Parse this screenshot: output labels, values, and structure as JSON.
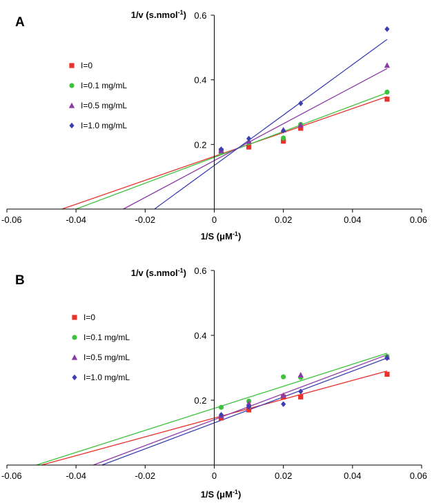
{
  "chart_data": [
    {
      "type": "scatter",
      "panel_label": "A",
      "ylabel": "1/v (s.nmol",
      "ylabel_sup": "-1",
      "ylabel_close": ")",
      "xlabel": "1/S (μM",
      "xlabel_sup": "-1",
      "xlabel_close": ")",
      "xlim": [
        -0.06,
        0.06
      ],
      "ylim": [
        0,
        0.6
      ],
      "x_ticks": [
        "-0.06",
        "-0.04",
        "-0.02",
        "0",
        "0.02",
        "0.04",
        "0.06"
      ],
      "x_tick_values": [
        -0.06,
        -0.04,
        -0.02,
        0,
        0.02,
        0.04,
        0.06
      ],
      "y_ticks": [
        "0.2",
        "0.4",
        "0.6"
      ],
      "y_tick_values": [
        0.2,
        0.4,
        0.6
      ],
      "grid": false,
      "legend_position": "top-left",
      "series": [
        {
          "name": "I=0",
          "marker": "square",
          "color": "#e8322b",
          "x": [
            0.002,
            0.01,
            0.02,
            0.025,
            0.05
          ],
          "y": [
            0.18,
            0.192,
            0.21,
            0.25,
            0.34
          ],
          "fit": {
            "slope": 3.7,
            "intercept": 0.163
          }
        },
        {
          "name": "I=0.1 mg/mL",
          "marker": "circle",
          "color": "#3cc33c",
          "x": [
            0.002,
            0.01,
            0.02,
            0.025,
            0.05
          ],
          "y": [
            0.175,
            0.205,
            0.22,
            0.262,
            0.362
          ],
          "fit": {
            "slope": 4.0,
            "intercept": 0.16
          }
        },
        {
          "name": "I=0.5 mg/mL",
          "marker": "triangle",
          "color": "#8e3aa6",
          "x": [
            0.002,
            0.01,
            0.02,
            0.025,
            0.05
          ],
          "y": [
            0.18,
            0.21,
            0.245,
            0.26,
            0.445
          ],
          "fit": {
            "slope": 5.7,
            "intercept": 0.15
          }
        },
        {
          "name": "I=1.0 mg/mL",
          "marker": "diamond",
          "color": "#3b3fb3",
          "x": [
            0.002,
            0.01,
            0.02,
            0.025,
            0.05
          ],
          "y": [
            0.185,
            0.218,
            0.243,
            0.327,
            0.557
          ],
          "fit": {
            "slope": 7.8,
            "intercept": 0.135
          }
        }
      ]
    },
    {
      "type": "scatter",
      "panel_label": "B",
      "ylabel": "1/v (s.nmol",
      "ylabel_sup": "-1",
      "ylabel_close": ")",
      "xlabel": "1/S (μM",
      "xlabel_sup": "-1",
      "xlabel_close": ")",
      "xlim": [
        -0.06,
        0.06
      ],
      "ylim": [
        0,
        0.6
      ],
      "x_ticks": [
        "-0.06",
        "-0.04",
        "-0.02",
        "0",
        "0.02",
        "0.04",
        "0.06"
      ],
      "x_tick_values": [
        -0.06,
        -0.04,
        -0.02,
        0,
        0.02,
        0.04,
        0.06
      ],
      "y_ticks": [
        "0.2",
        "0.4",
        "0.6"
      ],
      "y_tick_values": [
        0.2,
        0.4,
        0.6
      ],
      "grid": false,
      "legend_position": "top-left",
      "series": [
        {
          "name": "I=0",
          "marker": "square",
          "color": "#e8322b",
          "x": [
            0.002,
            0.01,
            0.02,
            0.025,
            0.05
          ],
          "y": [
            0.145,
            0.17,
            0.21,
            0.21,
            0.28
          ],
          "fit": {
            "slope": 2.9,
            "intercept": 0.145
          }
        },
        {
          "name": "I=0.1 mg/mL",
          "marker": "circle",
          "color": "#3cc33c",
          "x": [
            0.002,
            0.01,
            0.02,
            0.025,
            0.05
          ],
          "y": [
            0.178,
            0.197,
            0.272,
            0.27,
            0.335
          ],
          "fit": {
            "slope": 3.4,
            "intercept": 0.175
          }
        },
        {
          "name": "I=0.5 mg/mL",
          "marker": "triangle",
          "color": "#8e3aa6",
          "x": [
            0.002,
            0.01,
            0.02,
            0.025,
            0.05
          ],
          "y": [
            0.152,
            0.19,
            0.215,
            0.278,
            0.333
          ],
          "fit": {
            "slope": 4.0,
            "intercept": 0.14
          }
        },
        {
          "name": "I=1.0 mg/mL",
          "marker": "diamond",
          "color": "#3b3fb3",
          "x": [
            0.002,
            0.01,
            0.02,
            0.025,
            0.05
          ],
          "y": [
            0.155,
            0.18,
            0.188,
            0.227,
            0.33
          ],
          "fit": {
            "slope": 4.0,
            "intercept": 0.13
          }
        }
      ]
    }
  ]
}
